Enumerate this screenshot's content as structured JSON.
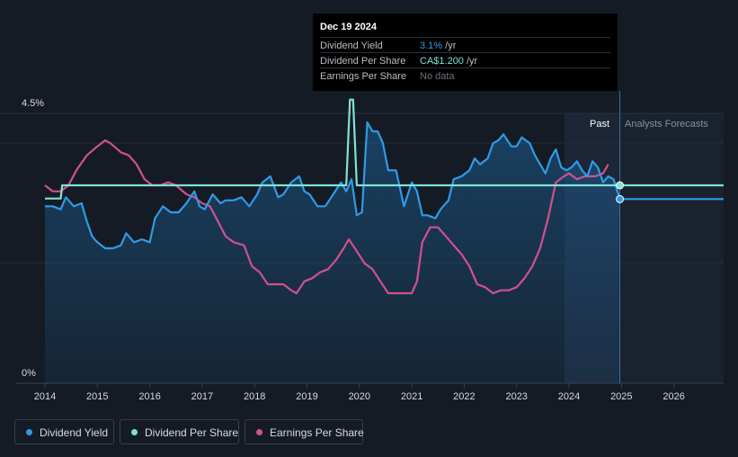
{
  "tooltip": {
    "date": "Dec 19 2024",
    "rows": [
      {
        "label": "Dividend Yield",
        "value": "3.1%",
        "unit": " /yr",
        "color": "#2f9be6"
      },
      {
        "label": "Dividend Per Share",
        "value": "CA$1.200",
        "unit": " /yr",
        "color": "#7fe3d4"
      },
      {
        "label": "Earnings Per Share",
        "value": "No data",
        "unit": "",
        "color": "#6b7079"
      }
    ]
  },
  "region_labels": {
    "past": "Past",
    "forecast": "Analysts Forecasts"
  },
  "legend": [
    {
      "label": "Dividend Yield",
      "color": "#2f9be6"
    },
    {
      "label": "Dividend Per Share",
      "color": "#7fe3d4"
    },
    {
      "label": "Earnings Per Share",
      "color": "#d0518f"
    }
  ],
  "chart_data": {
    "type": "line",
    "title": "",
    "xlabel": "",
    "ylabel": "",
    "y_axis_labels": [
      "4.5%",
      "0%"
    ],
    "ylim": [
      0,
      4.5
    ],
    "xlim": [
      2014.0,
      2026.95
    ],
    "x_ticks": [
      2014,
      2015,
      2016,
      2017,
      2018,
      2019,
      2020,
      2021,
      2022,
      2023,
      2024,
      2025,
      2026
    ],
    "x_tick_labels": [
      "2014",
      "2015",
      "2016",
      "2017",
      "2018",
      "2019",
      "2020",
      "2021",
      "2022",
      "2023",
      "2024",
      "2025",
      "2026"
    ],
    "past_forecast_boundary": 2024.97,
    "series": [
      {
        "name": "Dividend Yield",
        "color": "#2f9be6",
        "unit": "%",
        "x": [
          2014.0,
          2014.15,
          2014.3,
          2014.4,
          2014.55,
          2014.7,
          2014.8,
          2014.9,
          2015.0,
          2015.15,
          2015.3,
          2015.45,
          2015.55,
          2015.7,
          2015.85,
          2016.0,
          2016.1,
          2016.25,
          2016.4,
          2016.55,
          2016.7,
          2016.85,
          2016.95,
          2017.05,
          2017.2,
          2017.35,
          2017.45,
          2017.6,
          2017.75,
          2017.9,
          2018.05,
          2018.15,
          2018.3,
          2018.45,
          2018.55,
          2018.7,
          2018.85,
          2018.95,
          2019.05,
          2019.2,
          2019.35,
          2019.5,
          2019.65,
          2019.75,
          2019.85,
          2019.95,
          2020.05,
          2020.15,
          2020.25,
          2020.35,
          2020.45,
          2020.55,
          2020.7,
          2020.85,
          2021.0,
          2021.1,
          2021.2,
          2021.3,
          2021.45,
          2021.55,
          2021.7,
          2021.8,
          2021.95,
          2022.1,
          2022.2,
          2022.3,
          2022.45,
          2022.55,
          2022.65,
          2022.75,
          2022.9,
          2023.0,
          2023.1,
          2023.25,
          2023.35,
          2023.45,
          2023.55,
          2023.65,
          2023.75,
          2023.85,
          2023.95,
          2024.05,
          2024.15,
          2024.25,
          2024.35,
          2024.45,
          2024.55,
          2024.65,
          2024.75,
          2024.85,
          2024.97
        ],
        "values": [
          2.95,
          2.95,
          2.9,
          3.1,
          2.95,
          3.0,
          2.7,
          2.45,
          2.35,
          2.25,
          2.25,
          2.3,
          2.5,
          2.35,
          2.4,
          2.35,
          2.75,
          2.95,
          2.85,
          2.85,
          3.0,
          3.2,
          2.95,
          2.9,
          3.15,
          3.0,
          3.05,
          3.05,
          3.1,
          2.95,
          3.15,
          3.35,
          3.45,
          3.1,
          3.15,
          3.35,
          3.45,
          3.2,
          3.15,
          2.95,
          2.95,
          3.15,
          3.35,
          3.2,
          3.4,
          2.8,
          2.85,
          4.35,
          4.2,
          4.2,
          4.0,
          3.55,
          3.55,
          2.95,
          3.35,
          3.2,
          2.8,
          2.8,
          2.75,
          2.9,
          3.05,
          3.4,
          3.45,
          3.55,
          3.75,
          3.65,
          3.75,
          4.0,
          4.05,
          4.15,
          3.95,
          3.95,
          4.1,
          4.0,
          3.8,
          3.65,
          3.5,
          3.75,
          3.9,
          3.6,
          3.55,
          3.6,
          3.7,
          3.55,
          3.45,
          3.7,
          3.6,
          3.35,
          3.45,
          3.4,
          3.07
        ]
      },
      {
        "name": "Dividend Per Share",
        "color": "#7fe3d4",
        "unit": "CA$",
        "x": [
          2014.0,
          2014.3,
          2014.33,
          2019.75,
          2019.82,
          2019.88,
          2019.95,
          2024.97
        ],
        "values": [
          1.12,
          1.12,
          1.2,
          1.2,
          1.72,
          1.72,
          1.2,
          1.2
        ]
      },
      {
        "name": "Earnings Per Share",
        "color": "#d0518f",
        "unit": "",
        "x": [
          2014.0,
          2014.15,
          2014.3,
          2014.45,
          2014.6,
          2014.8,
          2015.0,
          2015.15,
          2015.25,
          2015.45,
          2015.6,
          2015.75,
          2015.9,
          2016.05,
          2016.2,
          2016.35,
          2016.5,
          2016.7,
          2016.85,
          2017.0,
          2017.15,
          2017.3,
          2017.45,
          2017.6,
          2017.8,
          2017.95,
          2018.1,
          2018.25,
          2018.4,
          2018.55,
          2018.7,
          2018.8,
          2018.95,
          2019.1,
          2019.25,
          2019.4,
          2019.55,
          2019.7,
          2019.8,
          2019.95,
          2020.1,
          2020.25,
          2020.4,
          2020.55,
          2020.7,
          2020.85,
          2021.0,
          2021.1,
          2021.2,
          2021.35,
          2021.5,
          2021.65,
          2021.8,
          2021.95,
          2022.1,
          2022.25,
          2022.4,
          2022.55,
          2022.7,
          2022.85,
          2023.0,
          2023.15,
          2023.3,
          2023.45,
          2023.6,
          2023.75,
          2023.9,
          2024.0,
          2024.15,
          2024.3,
          2024.5,
          2024.65,
          2024.75
        ],
        "values": [
          3.3,
          3.2,
          3.2,
          3.3,
          3.55,
          3.8,
          3.95,
          4.05,
          4.0,
          3.85,
          3.8,
          3.65,
          3.4,
          3.3,
          3.3,
          3.35,
          3.3,
          3.15,
          3.1,
          3.0,
          2.95,
          2.7,
          2.45,
          2.35,
          2.3,
          1.95,
          1.85,
          1.65,
          1.65,
          1.65,
          1.55,
          1.5,
          1.7,
          1.75,
          1.85,
          1.9,
          2.05,
          2.25,
          2.4,
          2.2,
          2.0,
          1.9,
          1.7,
          1.5,
          1.5,
          1.5,
          1.5,
          1.7,
          2.35,
          2.6,
          2.6,
          2.45,
          2.3,
          2.15,
          1.95,
          1.65,
          1.6,
          1.5,
          1.55,
          1.55,
          1.6,
          1.75,
          1.95,
          2.25,
          2.75,
          3.35,
          3.45,
          3.5,
          3.4,
          3.45,
          3.45,
          3.5,
          3.65
        ]
      }
    ],
    "forecast": [
      {
        "name": "Dividend Per Share",
        "x": [
          2024.97,
          2026.95
        ],
        "values": [
          1.2,
          1.2
        ]
      },
      {
        "name": "Dividend Yield",
        "x": [
          2024.97,
          2026.95
        ],
        "values": [
          3.07,
          3.07
        ]
      }
    ]
  }
}
